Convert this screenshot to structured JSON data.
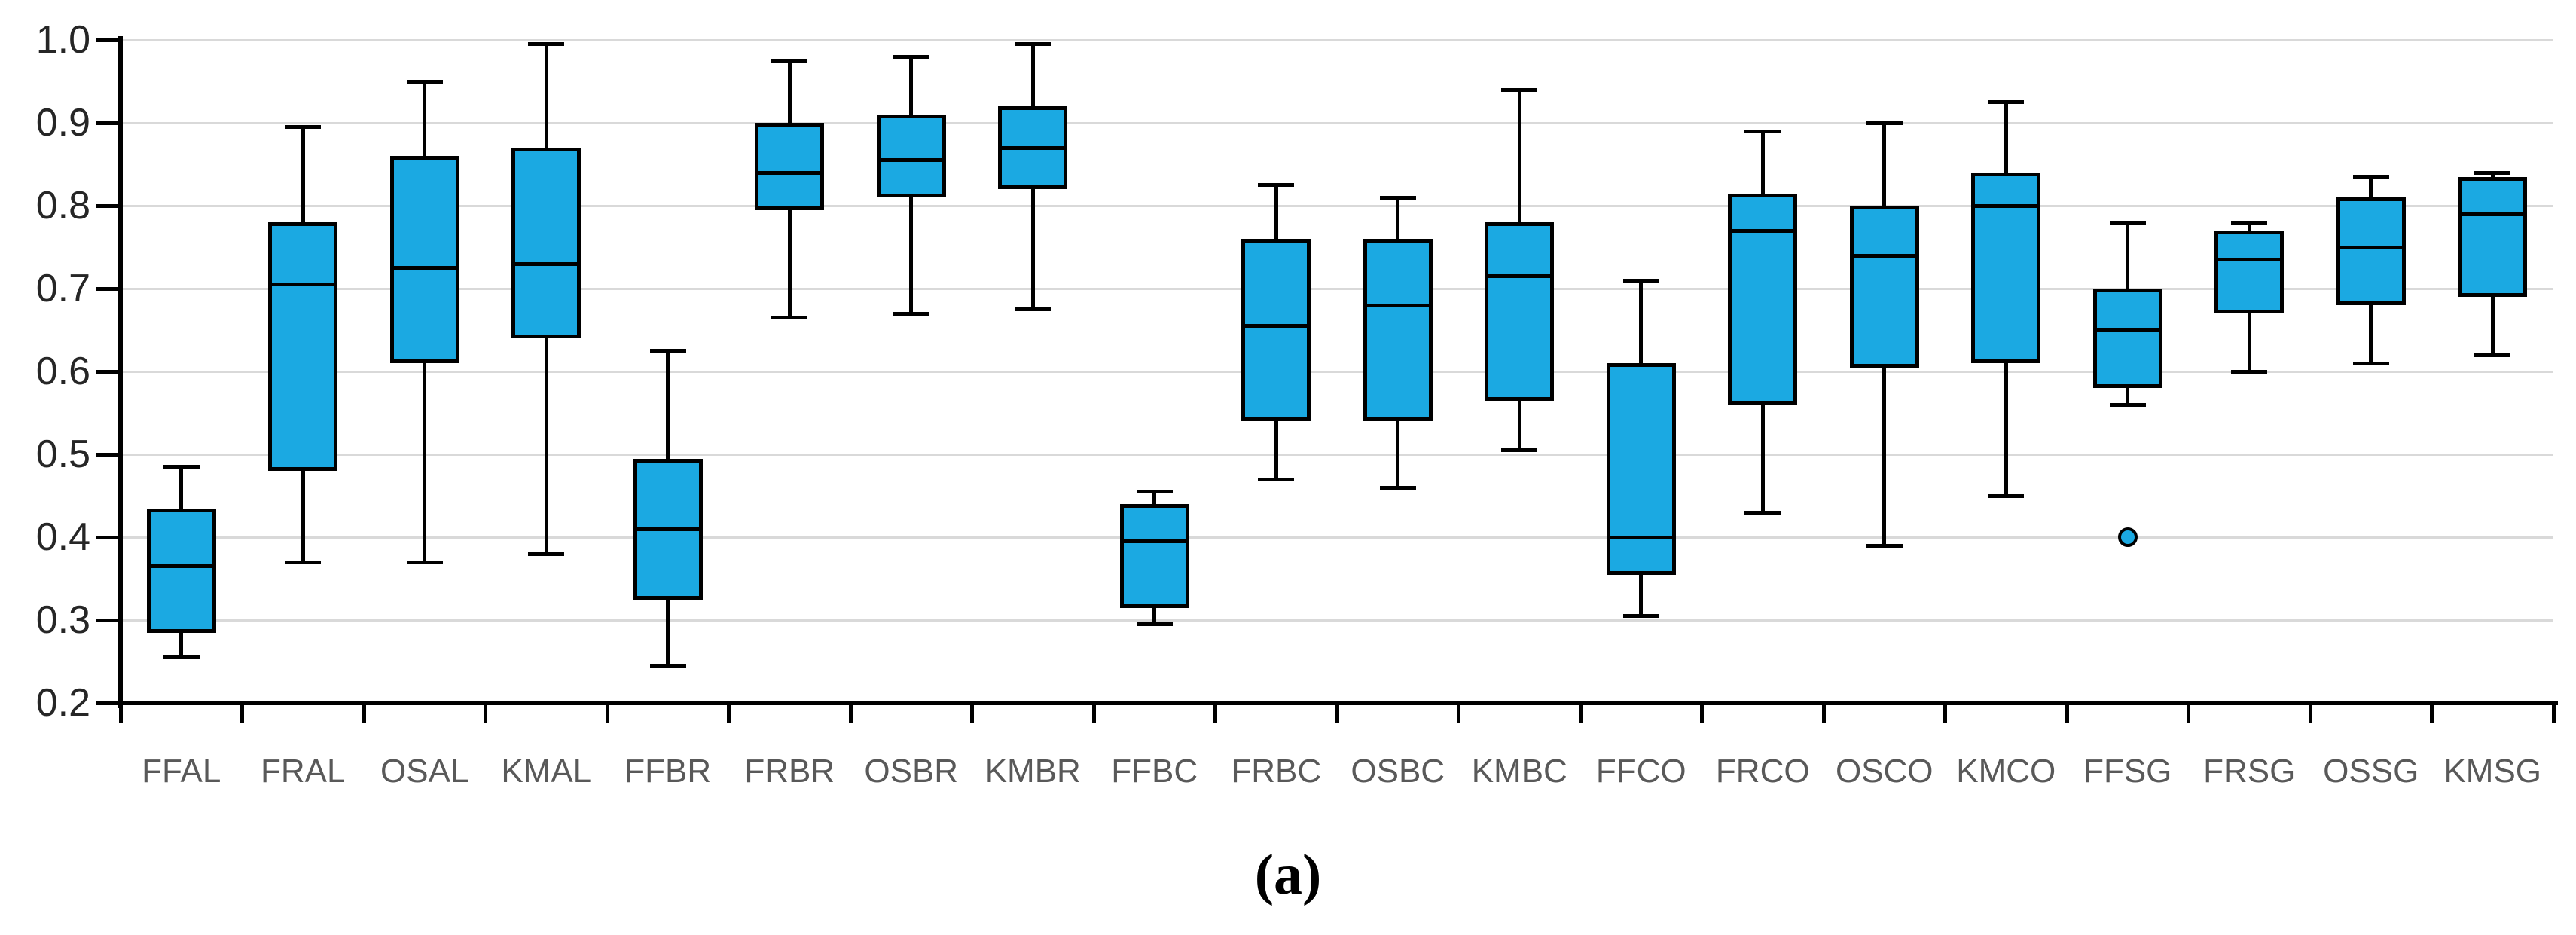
{
  "caption": "(a)",
  "colors": {
    "box_fill": "#1BA9E2",
    "box_stroke": "#000000",
    "gridline": "#D9D9D9",
    "axis": "#000000",
    "x_label": "#595959",
    "y_label": "#262626"
  },
  "chart_data": {
    "type": "box",
    "title": "",
    "xlabel": "",
    "ylabel": "",
    "grid": true,
    "legend": "none",
    "ylim": [
      0.2,
      1.0
    ],
    "y_ticks": [
      0.2,
      0.3,
      0.4,
      0.5,
      0.6,
      0.7,
      0.8,
      0.9,
      1.0
    ],
    "y_tick_labels": [
      "0.2",
      "0.3",
      "0.4",
      "0.5",
      "0.6",
      "0.7",
      "0.8",
      "0.9",
      "1.0"
    ],
    "categories": [
      "FFAL",
      "FRAL",
      "OSAL",
      "KMAL",
      "FFBR",
      "FRBR",
      "OSBR",
      "KMBR",
      "FFBC",
      "FRBC",
      "OSBC",
      "KMBC",
      "FFCO",
      "FRCO",
      "OSCO",
      "KMCO",
      "FFSG",
      "FRSG",
      "OSSG",
      "KMSG"
    ],
    "series": [
      {
        "name": "FFAL",
        "min": 0.255,
        "q1": 0.285,
        "median": 0.365,
        "q3": 0.435,
        "max": 0.485,
        "outliers": []
      },
      {
        "name": "FRAL",
        "min": 0.37,
        "q1": 0.48,
        "median": 0.705,
        "q3": 0.78,
        "max": 0.895,
        "outliers": []
      },
      {
        "name": "OSAL",
        "min": 0.37,
        "q1": 0.61,
        "median": 0.725,
        "q3": 0.86,
        "max": 0.95,
        "outliers": []
      },
      {
        "name": "KMAL",
        "min": 0.38,
        "q1": 0.64,
        "median": 0.73,
        "q3": 0.87,
        "max": 0.995,
        "outliers": []
      },
      {
        "name": "FFBR",
        "min": 0.245,
        "q1": 0.325,
        "median": 0.41,
        "q3": 0.495,
        "max": 0.625,
        "outliers": []
      },
      {
        "name": "FRBR",
        "min": 0.665,
        "q1": 0.795,
        "median": 0.84,
        "q3": 0.9,
        "max": 0.975,
        "outliers": []
      },
      {
        "name": "OSBR",
        "min": 0.67,
        "q1": 0.81,
        "median": 0.855,
        "q3": 0.91,
        "max": 0.98,
        "outliers": []
      },
      {
        "name": "KMBR",
        "min": 0.675,
        "q1": 0.82,
        "median": 0.87,
        "q3": 0.92,
        "max": 0.995,
        "outliers": []
      },
      {
        "name": "FFBC",
        "min": 0.295,
        "q1": 0.315,
        "median": 0.395,
        "q3": 0.44,
        "max": 0.455,
        "outliers": []
      },
      {
        "name": "FRBC",
        "min": 0.47,
        "q1": 0.54,
        "median": 0.655,
        "q3": 0.76,
        "max": 0.825,
        "outliers": []
      },
      {
        "name": "OSBC",
        "min": 0.46,
        "q1": 0.54,
        "median": 0.68,
        "q3": 0.76,
        "max": 0.81,
        "outliers": []
      },
      {
        "name": "KMBC",
        "min": 0.505,
        "q1": 0.565,
        "median": 0.715,
        "q3": 0.78,
        "max": 0.94,
        "outliers": []
      },
      {
        "name": "FFCO",
        "min": 0.305,
        "q1": 0.355,
        "median": 0.4,
        "q3": 0.61,
        "max": 0.71,
        "outliers": []
      },
      {
        "name": "FRCO",
        "min": 0.43,
        "q1": 0.56,
        "median": 0.77,
        "q3": 0.815,
        "max": 0.89,
        "outliers": []
      },
      {
        "name": "OSCO",
        "min": 0.39,
        "q1": 0.605,
        "median": 0.74,
        "q3": 0.8,
        "max": 0.9,
        "outliers": []
      },
      {
        "name": "KMCO",
        "min": 0.45,
        "q1": 0.61,
        "median": 0.8,
        "q3": 0.84,
        "max": 0.925,
        "outliers": []
      },
      {
        "name": "FFSG",
        "min": 0.56,
        "q1": 0.58,
        "median": 0.65,
        "q3": 0.7,
        "max": 0.78,
        "outliers": [
          0.4
        ]
      },
      {
        "name": "FRSG",
        "min": 0.6,
        "q1": 0.67,
        "median": 0.735,
        "q3": 0.77,
        "max": 0.78,
        "outliers": []
      },
      {
        "name": "OSSG",
        "min": 0.61,
        "q1": 0.68,
        "median": 0.75,
        "q3": 0.81,
        "max": 0.835,
        "outliers": []
      },
      {
        "name": "KMSG",
        "min": 0.62,
        "q1": 0.69,
        "median": 0.79,
        "q3": 0.835,
        "max": 0.84,
        "outliers": []
      }
    ]
  }
}
